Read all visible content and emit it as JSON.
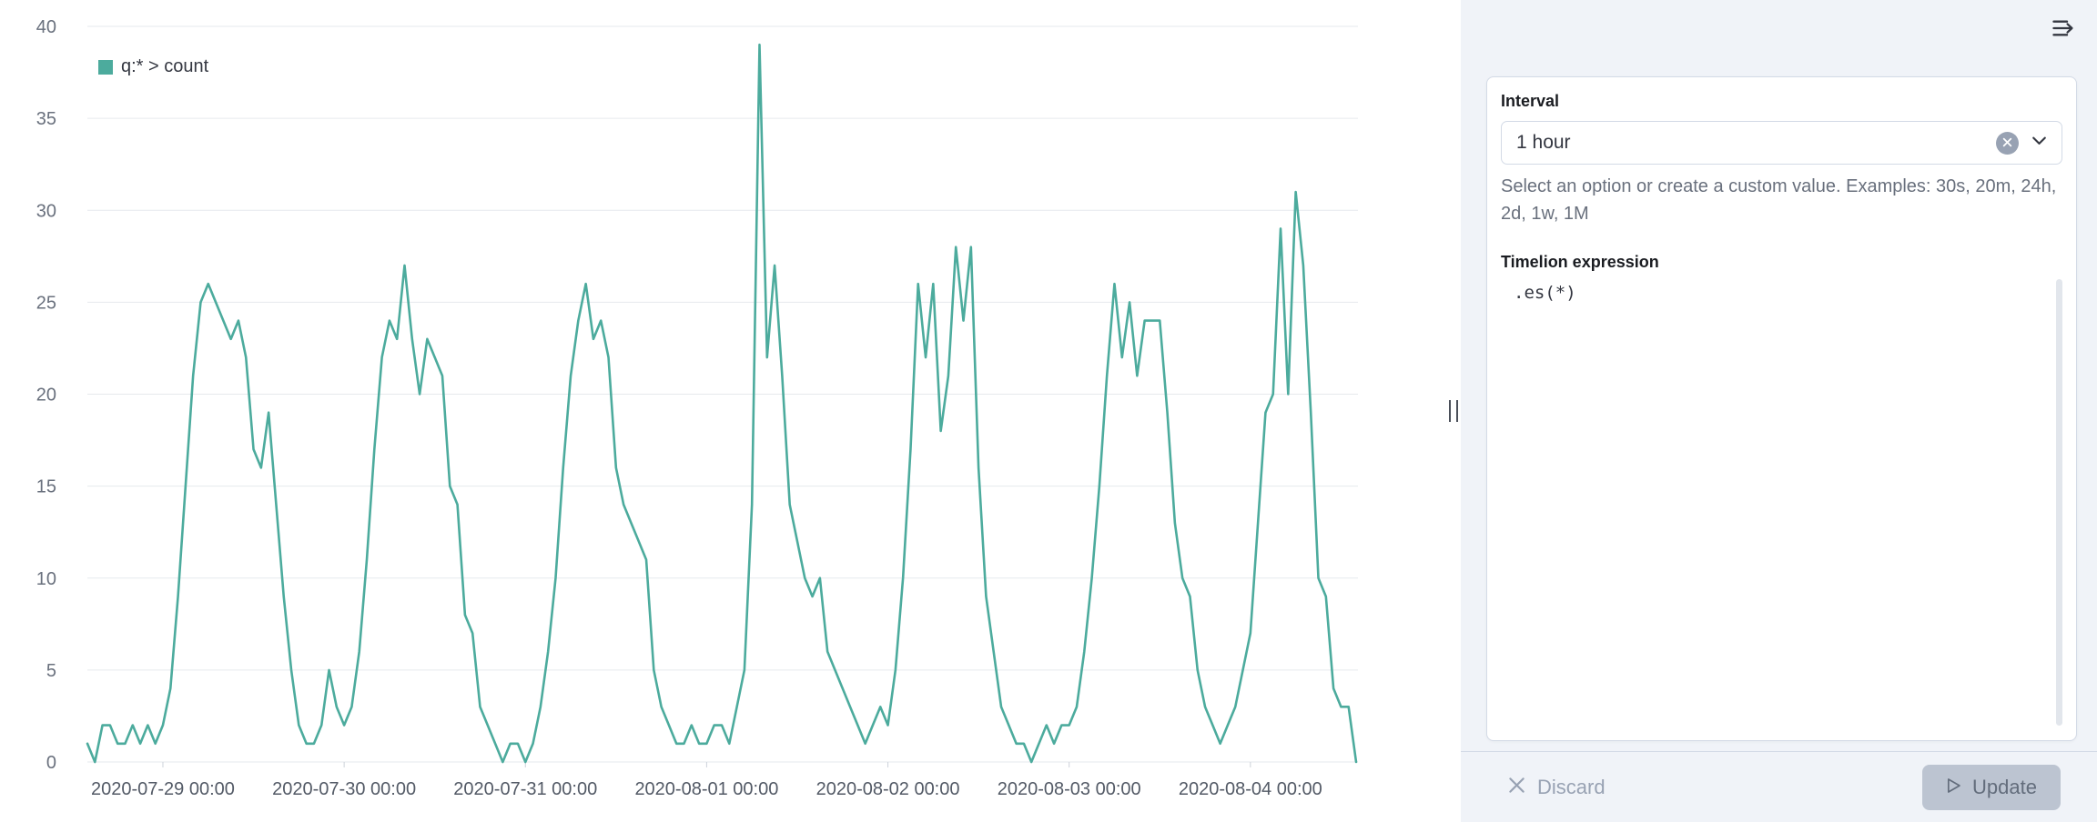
{
  "chart_data": {
    "type": "line",
    "title": "",
    "series": [
      {
        "name": "q:* > count",
        "color": "#4CAB9D",
        "values": [
          1,
          0,
          2,
          2,
          1,
          1,
          2,
          1,
          2,
          1,
          2,
          4,
          9,
          15,
          21,
          25,
          26,
          25,
          24,
          23,
          24,
          22,
          17,
          16,
          19,
          14,
          9,
          5,
          2,
          1,
          1,
          2,
          5,
          3,
          2,
          3,
          6,
          11,
          17,
          22,
          24,
          23,
          27,
          23,
          20,
          23,
          22,
          21,
          15,
          14,
          8,
          7,
          3,
          2,
          1,
          0,
          1,
          1,
          0,
          1,
          3,
          6,
          10,
          16,
          21,
          24,
          26,
          23,
          24,
          22,
          16,
          14,
          13,
          12,
          11,
          5,
          3,
          2,
          1,
          1,
          2,
          1,
          1,
          2,
          2,
          1,
          3,
          5,
          14,
          39,
          22,
          27,
          21,
          14,
          12,
          10,
          9,
          10,
          6,
          5,
          4,
          3,
          2,
          1,
          2,
          3,
          2,
          5,
          10,
          17,
          26,
          22,
          26,
          18,
          21,
          28,
          24,
          28,
          16,
          9,
          6,
          3,
          2,
          1,
          1,
          0,
          1,
          2,
          1,
          2,
          2,
          3,
          6,
          10,
          15,
          21,
          26,
          22,
          25,
          21,
          24,
          24,
          24,
          19,
          13,
          10,
          9,
          5,
          3,
          2,
          1,
          2,
          3,
          5,
          7,
          13,
          19,
          20,
          29,
          20,
          31,
          27,
          19,
          10,
          9,
          4,
          3,
          3,
          0
        ]
      }
    ],
    "x_start": "2020-07-28 14:00",
    "x_interval": "1 hour",
    "x_tick_indices": [
      10,
      34,
      58,
      82,
      106,
      130,
      154
    ],
    "x_tick_labels": [
      "2020-07-29 00:00",
      "2020-07-30 00:00",
      "2020-07-31 00:00",
      "2020-08-01 00:00",
      "2020-08-02 00:00",
      "2020-08-03 00:00",
      "2020-08-04 00:00"
    ],
    "y_ticks": [
      0,
      5,
      10,
      15,
      20,
      25,
      30,
      35,
      40
    ],
    "ylim": [
      0,
      40
    ],
    "grid": true,
    "legend_position": "top-left"
  },
  "sidebar": {
    "interval": {
      "label": "Interval",
      "value": "1 hour",
      "help": "Select an option or create a custom value. Examples: 30s, 20m, 24h, 2d, 1w, 1M"
    },
    "expression": {
      "label": "Timelion expression",
      "code": ".es(*)"
    },
    "footer": {
      "discard_label": "Discard",
      "update_label": "Update"
    }
  },
  "icons": {
    "collapse_panel": "menu-right-icon",
    "clear_selection": "cross-in-circle-icon",
    "dropdown": "chevron-down-icon",
    "discard": "cross-icon",
    "update": "play-icon",
    "resize": "vertical-grip-icon"
  },
  "colors": {
    "series_teal": "#4CAB9D",
    "sidebar_background": "#F0F3F8",
    "border": "#D3DAE6",
    "subdued_text": "#69707D"
  }
}
